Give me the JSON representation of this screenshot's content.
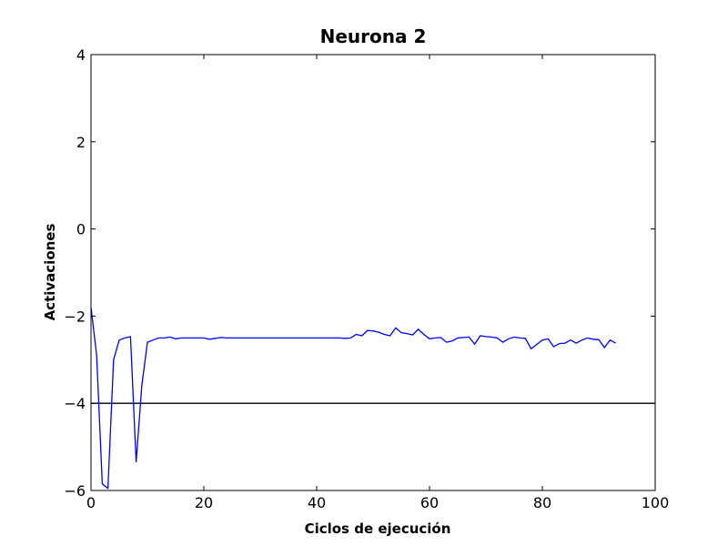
{
  "chart_data": {
    "type": "line",
    "title": "Neurona 2",
    "xlabel": "Ciclos de ejecución",
    "ylabel": "Activaciones",
    "xlim": [
      0,
      100
    ],
    "ylim": [
      -6,
      4
    ],
    "xticks": [
      0,
      20,
      40,
      60,
      80,
      100
    ],
    "yticks": [
      -6,
      -4,
      -2,
      0,
      2,
      4
    ],
    "xtick_labels": [
      "0",
      "20",
      "40",
      "60",
      "80",
      "100"
    ],
    "ytick_labels": [
      "−6",
      "−4",
      "−2",
      "0",
      "2",
      "4"
    ],
    "grid": false,
    "series": [
      {
        "color": "#0000ff",
        "x": [
          0,
          1,
          2,
          3,
          4,
          5,
          6,
          7,
          8,
          9,
          10,
          11,
          12,
          13,
          14,
          15,
          16,
          17,
          18,
          19,
          20,
          21,
          22,
          23,
          24,
          25,
          26,
          27,
          28,
          29,
          30,
          31,
          32,
          33,
          34,
          35,
          36,
          37,
          38,
          39,
          40,
          41,
          42,
          43,
          44,
          45,
          46,
          47,
          48,
          49,
          50,
          51,
          52,
          53,
          54,
          55,
          56,
          57,
          58,
          59,
          60,
          61,
          62,
          63,
          64,
          65,
          66,
          67,
          68,
          69,
          70,
          71,
          72,
          73,
          74,
          75,
          76,
          77,
          78,
          79,
          80,
          81,
          82,
          83,
          84,
          85,
          86,
          87,
          88,
          89,
          90,
          91,
          92,
          93
        ],
        "y": [
          -1.8,
          -2.9,
          -5.85,
          -5.95,
          -3.0,
          -2.55,
          -2.5,
          -2.47,
          -5.35,
          -3.6,
          -2.6,
          -2.55,
          -2.5,
          -2.5,
          -2.48,
          -2.52,
          -2.5,
          -2.5,
          -2.5,
          -2.5,
          -2.5,
          -2.53,
          -2.51,
          -2.49,
          -2.5,
          -2.5,
          -2.5,
          -2.5,
          -2.5,
          -2.5,
          -2.5,
          -2.5,
          -2.5,
          -2.5,
          -2.5,
          -2.5,
          -2.5,
          -2.5,
          -2.5,
          -2.5,
          -2.5,
          -2.5,
          -2.5,
          -2.5,
          -2.5,
          -2.51,
          -2.5,
          -2.42,
          -2.45,
          -2.33,
          -2.34,
          -2.37,
          -2.42,
          -2.45,
          -2.27,
          -2.38,
          -2.4,
          -2.43,
          -2.3,
          -2.42,
          -2.52,
          -2.5,
          -2.49,
          -2.6,
          -2.57,
          -2.5,
          -2.49,
          -2.48,
          -2.64,
          -2.45,
          -2.47,
          -2.48,
          -2.5,
          -2.6,
          -2.52,
          -2.48,
          -2.5,
          -2.51,
          -2.75,
          -2.65,
          -2.55,
          -2.52,
          -2.7,
          -2.63,
          -2.62,
          -2.55,
          -2.62,
          -2.55,
          -2.5,
          -2.53,
          -2.54,
          -2.72,
          -2.55,
          -2.62
        ]
      }
    ],
    "hlines": [
      {
        "y": -4,
        "color": "#000000"
      }
    ]
  }
}
